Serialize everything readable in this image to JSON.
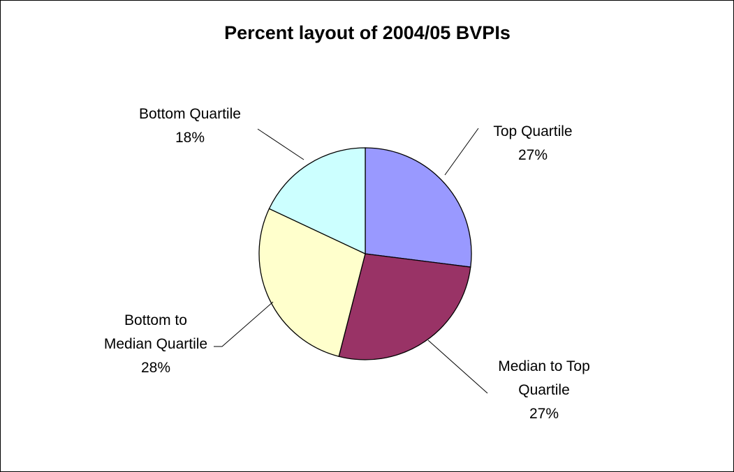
{
  "chart_data": {
    "type": "pie",
    "title": "Percent layout of 2004/05 BVPIs",
    "slices": [
      {
        "label": [
          "Top Quartile"
        ],
        "percent_label": "27%",
        "value": 27,
        "color": "#9999ff"
      },
      {
        "label": [
          "Median to Top",
          "Quartile"
        ],
        "percent_label": "27%",
        "value": 27,
        "color": "#993366"
      },
      {
        "label": [
          "Bottom to",
          "Median Quartile"
        ],
        "percent_label": "28%",
        "value": 28,
        "color": "#ffffcc"
      },
      {
        "label": [
          "Bottom Quartile"
        ],
        "percent_label": "18%",
        "value": 18,
        "color": "#ccffff"
      }
    ],
    "start_angle": "12 o'clock, clockwise",
    "legend": "none"
  }
}
